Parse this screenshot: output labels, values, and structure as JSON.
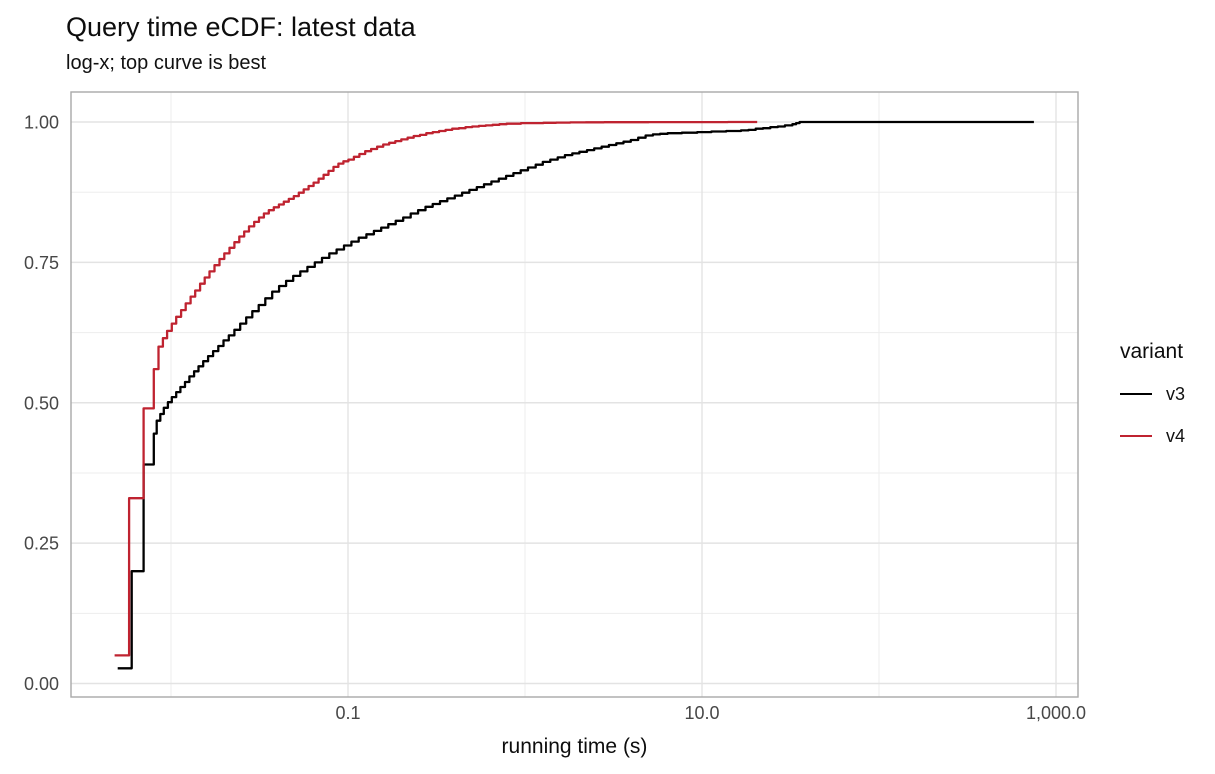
{
  "colors": {
    "background": "#ffffff",
    "grid_major": "#e3e3e3",
    "grid_minor": "#ededed",
    "panel_border": "#a9a9a9",
    "tick_label": "#474747",
    "series_v3": "#000000",
    "series_v4": "#bf2330"
  },
  "chart_data": {
    "type": "line",
    "subtype": "ecdf-step",
    "title": "Query time eCDF: latest data",
    "subtitle": "log-x; top curve is best",
    "xlabel": "running time (s)",
    "ylabel": "",
    "x_scale": "log10",
    "xlim": [
      0.0028,
      1300
    ],
    "ylim": [
      0,
      1
    ],
    "grid": true,
    "interpolation": "step-after",
    "x_ticks": [
      {
        "value": 0.1,
        "label": "0.1"
      },
      {
        "value": 10,
        "label": "10.0"
      },
      {
        "value": 1000,
        "label": "1,000.0"
      }
    ],
    "x_minor_ticks": [
      0.01,
      1,
      100
    ],
    "y_ticks": [
      {
        "value": 0.0,
        "label": "0.00"
      },
      {
        "value": 0.25,
        "label": "0.25"
      },
      {
        "value": 0.5,
        "label": "0.50"
      },
      {
        "value": 0.75,
        "label": "0.75"
      },
      {
        "value": 1.0,
        "label": "1.00"
      }
    ],
    "y_minor_ticks": [
      0.125,
      0.375,
      0.625,
      0.875
    ],
    "legend": {
      "title": "variant",
      "position": "right",
      "entries": [
        {
          "label": "v3",
          "color": "#000000"
        },
        {
          "label": "v4",
          "color": "#bf2330"
        }
      ]
    },
    "series": [
      {
        "name": "v3",
        "color": "#000000",
        "points": [
          [
            0.005,
            0.027
          ],
          [
            0.006,
            0.2
          ],
          [
            0.007,
            0.39
          ],
          [
            0.008,
            0.445
          ],
          [
            0.0083,
            0.468
          ],
          [
            0.0087,
            0.48
          ],
          [
            0.0091,
            0.491
          ],
          [
            0.0096,
            0.501
          ],
          [
            0.0101,
            0.51
          ],
          [
            0.0107,
            0.519
          ],
          [
            0.0113,
            0.528
          ],
          [
            0.012,
            0.537
          ],
          [
            0.0127,
            0.547
          ],
          [
            0.0135,
            0.556
          ],
          [
            0.0143,
            0.565
          ],
          [
            0.0152,
            0.574
          ],
          [
            0.0162,
            0.583
          ],
          [
            0.0173,
            0.592
          ],
          [
            0.0185,
            0.601
          ],
          [
            0.0198,
            0.611
          ],
          [
            0.0212,
            0.62
          ],
          [
            0.0228,
            0.63
          ],
          [
            0.0246,
            0.641
          ],
          [
            0.0266,
            0.652
          ],
          [
            0.0288,
            0.663
          ],
          [
            0.0313,
            0.674
          ],
          [
            0.0341,
            0.686
          ],
          [
            0.0373,
            0.698
          ],
          [
            0.0408,
            0.708
          ],
          [
            0.0447,
            0.717
          ],
          [
            0.049,
            0.726
          ],
          [
            0.0538,
            0.734
          ],
          [
            0.059,
            0.742
          ],
          [
            0.0649,
            0.75
          ],
          [
            0.0713,
            0.758
          ],
          [
            0.0784,
            0.766
          ],
          [
            0.0862,
            0.773
          ],
          [
            0.0949,
            0.78
          ],
          [
            0.1045,
            0.787
          ],
          [
            0.115,
            0.794
          ],
          [
            0.127,
            0.8
          ],
          [
            0.14,
            0.806
          ],
          [
            0.154,
            0.812
          ],
          [
            0.169,
            0.818
          ],
          [
            0.186,
            0.824
          ],
          [
            0.205,
            0.83
          ],
          [
            0.226,
            0.837
          ],
          [
            0.249,
            0.843
          ],
          [
            0.274,
            0.849
          ],
          [
            0.301,
            0.854
          ],
          [
            0.331,
            0.859
          ],
          [
            0.364,
            0.864
          ],
          [
            0.401,
            0.869
          ],
          [
            0.441,
            0.874
          ],
          [
            0.485,
            0.879
          ],
          [
            0.534,
            0.884
          ],
          [
            0.587,
            0.889
          ],
          [
            0.646,
            0.894
          ],
          [
            0.711,
            0.899
          ],
          [
            0.782,
            0.904
          ],
          [
            0.86,
            0.909
          ],
          [
            0.946,
            0.914
          ],
          [
            1.04,
            0.919
          ],
          [
            1.15,
            0.924
          ],
          [
            1.26,
            0.929
          ],
          [
            1.39,
            0.933
          ],
          [
            1.53,
            0.937
          ],
          [
            1.68,
            0.941
          ],
          [
            1.85,
            0.944
          ],
          [
            2.03,
            0.947
          ],
          [
            2.24,
            0.95
          ],
          [
            2.46,
            0.953
          ],
          [
            2.71,
            0.956
          ],
          [
            2.98,
            0.959
          ],
          [
            3.28,
            0.962
          ],
          [
            3.6,
            0.965
          ],
          [
            3.96,
            0.968
          ],
          [
            4.36,
            0.972
          ],
          [
            4.8,
            0.976
          ],
          [
            5.28,
            0.978
          ],
          [
            5.8,
            0.979
          ],
          [
            6.4,
            0.98
          ],
          [
            7.0,
            0.98
          ],
          [
            7.7,
            0.981
          ],
          [
            8.5,
            0.981
          ],
          [
            9.4,
            0.982
          ],
          [
            10.3,
            0.982
          ],
          [
            11.3,
            0.983
          ],
          [
            12.5,
            0.983
          ],
          [
            13.7,
            0.984
          ],
          [
            15.1,
            0.984
          ],
          [
            16.6,
            0.985
          ],
          [
            18.3,
            0.986
          ],
          [
            20.1,
            0.988
          ],
          [
            22.1,
            0.989
          ],
          [
            24.3,
            0.991
          ],
          [
            26.8,
            0.992
          ],
          [
            29.4,
            0.994
          ],
          [
            32.4,
            0.996
          ],
          [
            34.0,
            0.998
          ],
          [
            35.6,
            1.0
          ],
          [
            750,
            1.0
          ]
        ]
      },
      {
        "name": "v4",
        "color": "#bf2330",
        "points": [
          [
            0.0048,
            0.05
          ],
          [
            0.0058,
            0.33
          ],
          [
            0.007,
            0.49
          ],
          [
            0.008,
            0.56
          ],
          [
            0.0085,
            0.6
          ],
          [
            0.009,
            0.615
          ],
          [
            0.0095,
            0.628
          ],
          [
            0.0101,
            0.641
          ],
          [
            0.0107,
            0.653
          ],
          [
            0.0114,
            0.665
          ],
          [
            0.0121,
            0.677
          ],
          [
            0.0129,
            0.689
          ],
          [
            0.0137,
            0.7
          ],
          [
            0.0146,
            0.712
          ],
          [
            0.0155,
            0.723
          ],
          [
            0.0165,
            0.734
          ],
          [
            0.0176,
            0.745
          ],
          [
            0.0188,
            0.756
          ],
          [
            0.02,
            0.766
          ],
          [
            0.0214,
            0.776
          ],
          [
            0.0228,
            0.786
          ],
          [
            0.0243,
            0.796
          ],
          [
            0.0259,
            0.805
          ],
          [
            0.0276,
            0.814
          ],
          [
            0.0295,
            0.822
          ],
          [
            0.0314,
            0.83
          ],
          [
            0.0335,
            0.837
          ],
          [
            0.0357,
            0.843
          ],
          [
            0.0381,
            0.848
          ],
          [
            0.0407,
            0.853
          ],
          [
            0.0434,
            0.858
          ],
          [
            0.0463,
            0.863
          ],
          [
            0.0494,
            0.868
          ],
          [
            0.0527,
            0.874
          ],
          [
            0.0562,
            0.88
          ],
          [
            0.0599,
            0.886
          ],
          [
            0.0639,
            0.892
          ],
          [
            0.0682,
            0.899
          ],
          [
            0.0728,
            0.906
          ],
          [
            0.0776,
            0.913
          ],
          [
            0.0828,
            0.92
          ],
          [
            0.0883,
            0.926
          ],
          [
            0.0942,
            0.93
          ],
          [
            0.1005,
            0.933
          ],
          [
            0.108,
            0.938
          ],
          [
            0.116,
            0.943
          ],
          [
            0.125,
            0.948
          ],
          [
            0.135,
            0.952
          ],
          [
            0.146,
            0.956
          ],
          [
            0.158,
            0.96
          ],
          [
            0.171,
            0.963
          ],
          [
            0.185,
            0.966
          ],
          [
            0.2,
            0.969
          ],
          [
            0.217,
            0.972
          ],
          [
            0.235,
            0.975
          ],
          [
            0.255,
            0.977
          ],
          [
            0.277,
            0.98
          ],
          [
            0.301,
            0.982
          ],
          [
            0.327,
            0.984
          ],
          [
            0.356,
            0.986
          ],
          [
            0.388,
            0.988
          ],
          [
            0.423,
            0.989
          ],
          [
            0.461,
            0.991
          ],
          [
            0.503,
            0.992
          ],
          [
            0.549,
            0.993
          ],
          [
            0.6,
            0.994
          ],
          [
            0.656,
            0.995
          ],
          [
            0.718,
            0.996
          ],
          [
            0.787,
            0.997
          ],
          [
            0.863,
            0.997
          ],
          [
            0.948,
            0.998
          ],
          [
            1.09,
            0.998
          ],
          [
            1.27,
            0.9985
          ],
          [
            1.5,
            0.999
          ],
          [
            1.8,
            0.9992
          ],
          [
            2.2,
            0.9994
          ],
          [
            2.8,
            0.9996
          ],
          [
            3.7,
            0.9997
          ],
          [
            5.0,
            0.9998
          ],
          [
            7.0,
            0.9999
          ],
          [
            10.0,
            0.9999
          ],
          [
            14.0,
            1.0
          ],
          [
            20.5,
            1.0
          ]
        ]
      }
    ]
  }
}
